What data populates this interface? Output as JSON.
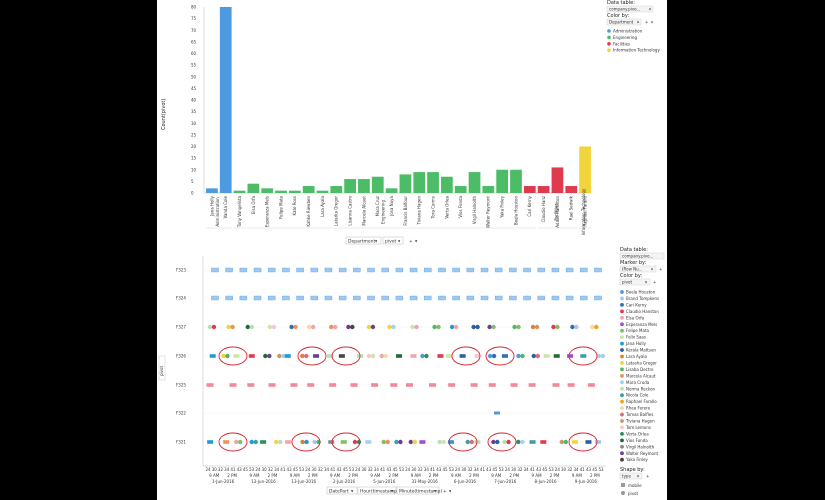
{
  "chart_data": [
    {
      "type": "bar",
      "ylabel": "Count(pivot)",
      "ylim": [
        0,
        80
      ],
      "yticks": [
        0,
        5,
        10,
        15,
        20,
        25,
        30,
        35,
        40,
        45,
        50,
        55,
        60,
        65,
        70,
        75,
        80
      ],
      "x_axis_control": "Department",
      "x_axis_control_2": "pivot",
      "colors": {
        "Administration": "#4c9be0",
        "Engineering": "#4cbc66",
        "Facilities": "#e03a4e",
        "Information Technology": "#f2d43c"
      },
      "groups": [
        {
          "name": "Administration",
          "start": 0,
          "end": 1
        },
        {
          "name": "Engineering",
          "start": 2,
          "end": 23
        },
        {
          "name": "Facilities",
          "start": 24,
          "end": 26
        },
        {
          "name": "Information Technology",
          "start": 27,
          "end": 27
        }
      ],
      "categories": [
        "Jana Holly",
        "Vanda Cole",
        "Tony Vangelista",
        "Elsa Orfa",
        "Esperanza Mels",
        "Felipe Mata",
        "Kate Ross",
        "Kahke Riewben",
        "Lara Ayala",
        "Latarka Gregor",
        "Lisanna Castro",
        "Marcela Alcaut",
        "Mara Cruz",
        "Josa Nuya",
        "Francis Balfour",
        "Tiviana Hagen",
        "Tora Curms",
        "Verta Orlea",
        "Vios Fonda",
        "Virgil Halnolth",
        "Walter Reymont",
        "Yaka Finley",
        "Beela Houston",
        "Cari Kerny",
        "Claudio Hanz",
        "Adalio Hamilton",
        "Rael Sedwik",
        "Raphael Farallo"
      ],
      "values": [
        2,
        80,
        1,
        4,
        2,
        1,
        1,
        3,
        1,
        3,
        6,
        6,
        7,
        2,
        8,
        9,
        9,
        7,
        3,
        9,
        3,
        10,
        10,
        3,
        3,
        11,
        3,
        20
      ],
      "bar_groups": [
        "Administration",
        "Administration",
        "Engineering",
        "Engineering",
        "Engineering",
        "Engineering",
        "Engineering",
        "Engineering",
        "Engineering",
        "Engineering",
        "Engineering",
        "Engineering",
        "Engineering",
        "Engineering",
        "Engineering",
        "Engineering",
        "Engineering",
        "Engineering",
        "Engineering",
        "Engineering",
        "Engineering",
        "Engineering",
        "Engineering",
        "Facilities",
        "Facilities",
        "Facilities",
        "Facilities",
        "Information Technology"
      ],
      "legend": {
        "data_table_label": "Data table:",
        "data_table_value": "company.pivo...",
        "color_by_label": "Color by:",
        "color_by_value": "Department",
        "entries": [
          "Administration",
          "Engineering",
          "Facilities",
          "Information Technology"
        ]
      }
    },
    {
      "type": "scatter",
      "ylabel": "pivot",
      "rows": [
        "F323",
        "F324",
        "F327",
        "F326",
        "F325",
        "F322",
        "F321"
      ],
      "x_control": [
        "DatePart",
        "Hour(timestamp)",
        "Minute(timestamp)"
      ],
      "x_days": [
        {
          "date": "1-Jun-2016",
          "ticks": [
            "9 AM",
            "2 PM"
          ]
        },
        {
          "date": "13-Jun-2016",
          "ticks": [
            "9 AM",
            "2 PM"
          ]
        },
        {
          "date": "13-Jun-2016",
          "ticks": [
            "9 AM",
            "2 PM"
          ]
        },
        {
          "date": "2-Jun-2016",
          "ticks": [
            "9 AM",
            "2 PM"
          ]
        },
        {
          "date": "5-Jun-2016",
          "ticks": [
            "9 AM",
            "2 PM"
          ]
        },
        {
          "date": "31-May-2016",
          "ticks": [
            "9 AM",
            "2 PM"
          ]
        },
        {
          "date": "6-Jun-2016",
          "ticks": [
            "9 AM",
            "2 PM"
          ]
        },
        {
          "date": "7-Jun-2016",
          "ticks": [
            "9 AM",
            "2 PM"
          ]
        },
        {
          "date": "8-Jun-2016",
          "ticks": [
            "9 AM",
            "2 PM"
          ]
        },
        {
          "date": "9-Jun-2016",
          "ticks": [
            "9 AM",
            "2 PM"
          ]
        }
      ],
      "legend": {
        "data_table_label": "Data table:",
        "data_table_value": "company.pivo...",
        "marker_by_label": "Marker by:",
        "marker_by_value": "(Row Nu...",
        "color_by_label": "Color by:",
        "color_by_value": "pivot",
        "shape_by_label": "Shape by:",
        "shape_by_value": "type",
        "shape_entries": [
          "mobile",
          "pivot"
        ],
        "entries": [
          {
            "name": "Beela Houston",
            "color": "#4c9be0"
          },
          {
            "name": "Brand Tompkens",
            "color": "#a9c6ea"
          },
          {
            "name": "Cari Kerny",
            "color": "#2f6db0"
          },
          {
            "name": "Claudio Hanston",
            "color": "#e03a4e"
          },
          {
            "name": "Elsa Orfa",
            "color": "#f0a3b0"
          },
          {
            "name": "Esperanza Mels",
            "color": "#a64ec7"
          },
          {
            "name": "Felipe Mata",
            "color": "#7fbf68"
          },
          {
            "name": "Felix Saas",
            "color": "#cfe4a8"
          },
          {
            "name": "Jana Holly",
            "color": "#1f9ad6"
          },
          {
            "name": "Kerala Mattsen",
            "color": "#2e5e9e"
          },
          {
            "name": "Lara Ayala",
            "color": "#e47b3c"
          },
          {
            "name": "Latasha Gregor",
            "color": "#f2d43c"
          },
          {
            "name": "Lisaba Dectro",
            "color": "#55b46a"
          },
          {
            "name": "Marcela Alcaut",
            "color": "#e8935a"
          },
          {
            "name": "Mara Cruda",
            "color": "#9fd2ee"
          },
          {
            "name": "Norma Reckon",
            "color": "#b7e0b3"
          },
          {
            "name": "Nicola Cole",
            "color": "#3ca0a0"
          },
          {
            "name": "Raphael Farallo",
            "color": "#f2a11f"
          },
          {
            "name": "Rhea Ferere",
            "color": "#f5d9a0"
          },
          {
            "name": "Tomas Balfles",
            "color": "#e06a7a"
          },
          {
            "name": "Tiviana Hagen",
            "color": "#c49a6c"
          },
          {
            "name": "Tom Lemons",
            "color": "#f2c9d0"
          },
          {
            "name": "Verta Orlea",
            "color": "#2d8f5a"
          },
          {
            "name": "Vios Fonda",
            "color": "#1e6b3a"
          },
          {
            "name": "Virgil Halnolth",
            "color": "#8a8a8a"
          },
          {
            "name": "Walter Reymont",
            "color": "#6b3f8c"
          },
          {
            "name": "Yaka Finley",
            "color": "#444444"
          }
        ]
      },
      "highlighted_groups": 10
    }
  ]
}
